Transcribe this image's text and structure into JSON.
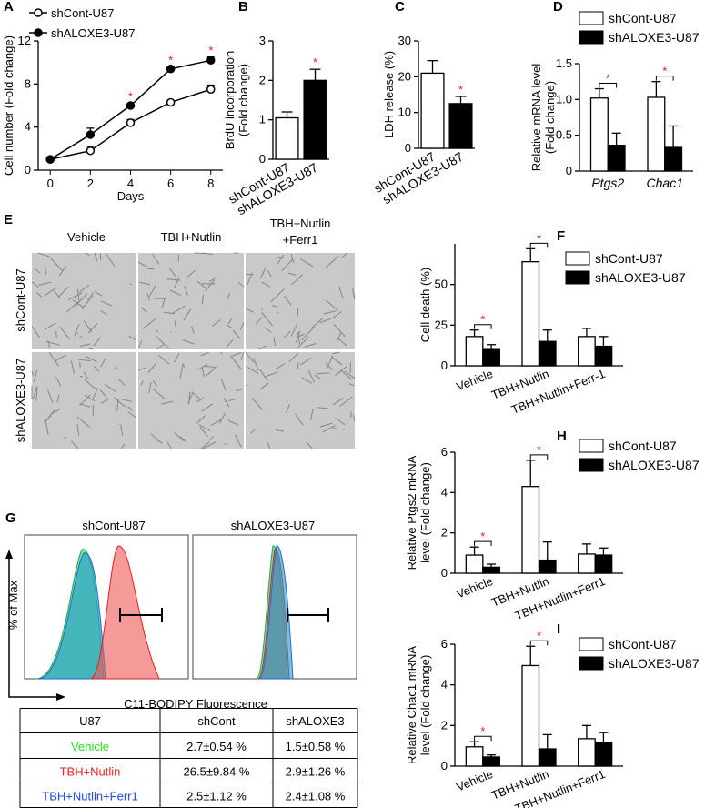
{
  "chart_data": [
    {
      "type": "line",
      "panel": "A",
      "xlabel": "Days",
      "ylabel": [
        "Cell number (Fold change)"
      ],
      "x": [
        0,
        2,
        4,
        6,
        8
      ],
      "xlim": [
        -0.6,
        8.6
      ],
      "xticks": [
        0,
        2,
        4,
        6,
        8
      ],
      "ylim": [
        0,
        12
      ],
      "yticks": [
        0,
        4,
        8,
        12
      ],
      "series": [
        {
          "name": "shCont-U87",
          "color": "#ffffff",
          "values": [
            1,
            1.8,
            4.4,
            6.3,
            7.5
          ],
          "errors": [
            0.05,
            0.4,
            0.3,
            0.2,
            0.4
          ]
        },
        {
          "name": "shALOXE3-U87",
          "color": "#000000",
          "values": [
            1,
            3.3,
            6.0,
            9.4,
            10.2
          ],
          "errors": [
            0.05,
            0.6,
            0.2,
            0.2,
            0.3
          ]
        }
      ],
      "significance": [
        null,
        null,
        "*",
        "*",
        "*"
      ]
    },
    {
      "type": "bar",
      "panel": "B",
      "ylabel": [
        "BrdU incorporation",
        "(Fold change)"
      ],
      "categories": [
        "shCont-U87",
        "shALOXE3-U87"
      ],
      "values": [
        1.05,
        2.0
      ],
      "errors": [
        0.15,
        0.28
      ],
      "colors": [
        "#ffffff",
        "#000000"
      ],
      "ylim": [
        0,
        3
      ],
      "yticks": [
        0,
        1,
        2,
        3
      ],
      "significance": [
        null,
        "*"
      ]
    },
    {
      "type": "bar",
      "panel": "C",
      "ylabel": [
        "LDH release (%)"
      ],
      "categories": [
        "shCont-U87",
        "shALOXE3-U87"
      ],
      "values": [
        21,
        12.5
      ],
      "errors": [
        3.5,
        2
      ],
      "colors": [
        "#ffffff",
        "#000000"
      ],
      "ylim": [
        0,
        30
      ],
      "yticks": [
        0,
        10,
        20,
        30
      ],
      "significance": [
        null,
        "*"
      ]
    },
    {
      "type": "grouped",
      "panel": "D",
      "ylabel": [
        "Relative mRNA level",
        "(Fold change)"
      ],
      "italic_categories": true,
      "categories": [
        "Ptgs2",
        "Chac1"
      ],
      "ylim": [
        0,
        1.5
      ],
      "yticks": [
        0,
        0.5,
        {
          "value": 1,
          "label": "1.0"
        },
        1.5
      ],
      "series": [
        {
          "name": "shCont-U87",
          "color": "#ffffff",
          "values": [
            1.02,
            1.03
          ],
          "errors": [
            0.13,
            0.22
          ]
        },
        {
          "name": "shALOXE3-U87",
          "color": "#000000",
          "values": [
            0.36,
            0.33
          ],
          "errors": [
            0.17,
            0.3
          ]
        }
      ],
      "significance": [
        "*",
        "*"
      ]
    },
    {
      "type": "grouped",
      "panel": "F",
      "ylabel": [
        "Cell death (%)"
      ],
      "categories": [
        "Vehicle",
        "TBH+Nutlin",
        "TBH+Nutlin+Ferr-1"
      ],
      "ylim": [
        0,
        75
      ],
      "yticks": [
        0,
        25,
        50
      ],
      "series": [
        {
          "name": "shCont-U87",
          "color": "#ffffff",
          "values": [
            18,
            64,
            18
          ],
          "errors": [
            4,
            8,
            5
          ]
        },
        {
          "name": "shALOXE3-U87",
          "color": "#000000",
          "values": [
            10,
            15,
            12
          ],
          "errors": [
            3,
            7,
            6
          ]
        }
      ],
      "significance": [
        "*",
        "*",
        null
      ]
    },
    {
      "type": "grouped",
      "panel": "H",
      "ylabel": [
        "Relative Ptgs2 mRNA",
        "level (Fold change)"
      ],
      "categories": [
        "Vehicle",
        "TBH+Nutlin",
        "TBH+Nutlin+Ferr1"
      ],
      "ylim": [
        0,
        6
      ],
      "yticks": [
        0,
        2,
        4,
        6
      ],
      "series": [
        {
          "name": "shCont-U87",
          "color": "#ffffff",
          "values": [
            0.9,
            4.3,
            0.95
          ],
          "errors": [
            0.4,
            1.3,
            0.5
          ]
        },
        {
          "name": "shALOXE3-U87",
          "color": "#000000",
          "values": [
            0.3,
            0.65,
            0.9
          ],
          "errors": [
            0.15,
            0.9,
            0.35
          ]
        }
      ],
      "significance": [
        "*",
        "*",
        null
      ]
    },
    {
      "type": "grouped",
      "panel": "I",
      "ylabel": [
        "Relative Chac1 mRNA",
        "level (Fold change)"
      ],
      "categories": [
        "Vehicle",
        "TBH+Nutlin",
        "TBH+Nutlin+Ferr1"
      ],
      "ylim": [
        0,
        6
      ],
      "yticks": [
        0,
        2,
        4,
        6
      ],
      "series": [
        {
          "name": "shCont-U87",
          "color": "#ffffff",
          "values": [
            0.95,
            4.95,
            1.35
          ],
          "errors": [
            0.25,
            0.95,
            0.65
          ]
        },
        {
          "name": "shALOXE3-U87",
          "color": "#000000",
          "values": [
            0.45,
            0.85,
            1.15
          ],
          "errors": [
            0.1,
            0.7,
            0.5
          ]
        }
      ],
      "significance": [
        "*",
        "*",
        null
      ]
    }
  ],
  "images": {
    "panel": "E",
    "columns": [
      "Vehicle",
      "TBH+Nutlin",
      "TBH+Nutlin",
      "+Ferr1"
    ],
    "rows": [
      "shCont-U87",
      "shALOXE3-U87"
    ]
  },
  "flow": {
    "panel": "G",
    "titles": [
      "shCont-U87",
      "shALOXE3-U87"
    ],
    "ylabel": "% of Max",
    "xlabel": "C11-BODIPY Fluorescence"
  },
  "table": {
    "header": [
      "U87",
      "shCont",
      "shALOXE3"
    ],
    "row_colors": [
      "#22dd22",
      "#ee2222",
      "#2244ee"
    ],
    "rows": [
      [
        "Vehicle",
        "2.7±0.54 %",
        "1.5±0.58 %"
      ],
      [
        "TBH+Nutlin",
        "26.5±9.84 %",
        "2.9±1.26 %"
      ],
      [
        "TBH+Nutlin+Ferr1",
        "2.5±1.12 %",
        "2.4±1.08 %"
      ]
    ]
  }
}
